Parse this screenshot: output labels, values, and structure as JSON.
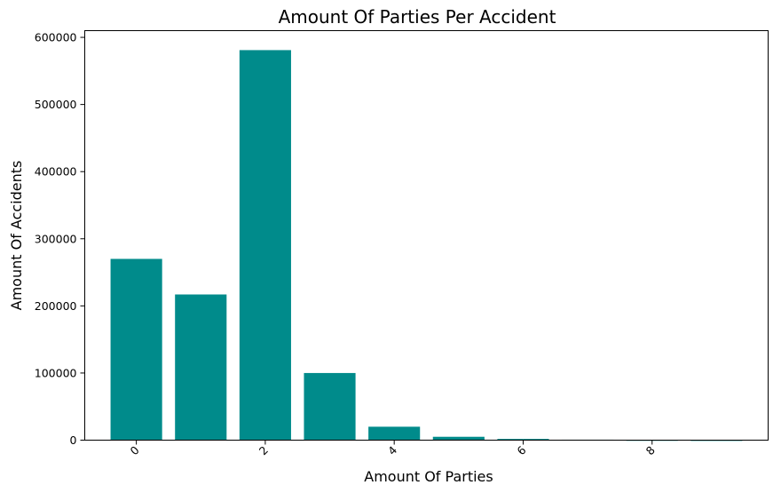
{
  "chart_data": {
    "type": "bar",
    "title": "Amount Of Parties Per Accident",
    "xlabel": "Amount Of Parties",
    "ylabel": "Amount Of Accidents",
    "x": [
      0,
      1,
      2,
      3,
      4,
      5,
      6,
      7,
      8,
      9
    ],
    "values": [
      270000,
      217000,
      581000,
      100000,
      20000,
      5000,
      1800,
      700,
      350,
      200
    ],
    "xticks": [
      "0",
      "2",
      "4",
      "6",
      "8"
    ],
    "yticks": [
      "0",
      "100000",
      "200000",
      "300000",
      "400000",
      "500000",
      "600000"
    ],
    "xlim": [
      -0.8,
      9.8
    ],
    "ylim": [
      0,
      610000
    ],
    "bar_color": "#008b8b",
    "grid": false,
    "xtick_rotation": -45
  }
}
